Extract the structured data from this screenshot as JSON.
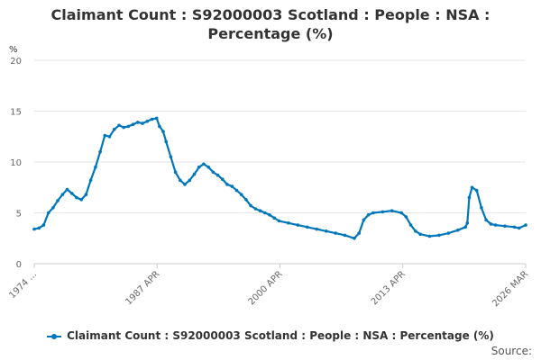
{
  "chart_data": {
    "type": "line",
    "title_line1": "Claimant Count : S92000003 Scotland : People : NSA :",
    "title_line2": "Percentage (%)",
    "ylabel": "%",
    "xlabel": "",
    "ylim": [
      0,
      20
    ],
    "yticks": [
      "0",
      "5",
      "10",
      "15",
      "20"
    ],
    "xlim": [
      1974.0,
      2026.2
    ],
    "xtick_labels": [
      "1974 ...",
      "1987 APR",
      "2000 APR",
      "2013 APR",
      "2026 MAR"
    ],
    "grid": true,
    "legend_position": "bottom",
    "series": [
      {
        "name": "Claimant Count : S92000003 Scotland : People : NSA : Percentage (%)",
        "color": "#0077bb",
        "x": [
          1974.0,
          1974.5,
          1975.0,
          1975.5,
          1976.0,
          1976.5,
          1977.0,
          1977.5,
          1978.0,
          1978.5,
          1979.0,
          1979.5,
          1980.0,
          1980.5,
          1981.0,
          1981.5,
          1982.0,
          1982.5,
          1983.0,
          1983.5,
          1984.0,
          1984.5,
          1985.0,
          1985.5,
          1986.0,
          1986.5,
          1987.0,
          1987.3,
          1987.7,
          1988.0,
          1988.5,
          1989.0,
          1989.5,
          1990.0,
          1990.5,
          1991.0,
          1991.5,
          1992.0,
          1992.5,
          1993.0,
          1993.5,
          1994.0,
          1994.5,
          1995.0,
          1995.5,
          1996.0,
          1996.5,
          1997.0,
          1997.5,
          1998.0,
          1998.5,
          1999.0,
          1999.5,
          2000.0,
          2001.0,
          2002.0,
          2003.0,
          2004.0,
          2005.0,
          2006.0,
          2007.0,
          2008.0,
          2008.5,
          2009.0,
          2009.5,
          2010.0,
          2011.0,
          2012.0,
          2013.0,
          2013.5,
          2014.0,
          2014.5,
          2015.0,
          2016.0,
          2017.0,
          2018.0,
          2019.0,
          2019.8,
          2020.0,
          2020.2,
          2020.5,
          2021.0,
          2021.5,
          2022.0,
          2022.5,
          2023.0,
          2024.0,
          2025.0,
          2025.5,
          2026.2
        ],
        "values": [
          3.4,
          3.5,
          3.8,
          5.0,
          5.5,
          6.2,
          6.8,
          7.3,
          6.9,
          6.5,
          6.3,
          6.8,
          8.2,
          9.5,
          11.0,
          12.6,
          12.5,
          13.2,
          13.6,
          13.4,
          13.5,
          13.7,
          13.9,
          13.8,
          14.0,
          14.2,
          14.3,
          13.5,
          13.0,
          12.0,
          10.5,
          9.0,
          8.2,
          7.8,
          8.2,
          8.8,
          9.5,
          9.8,
          9.5,
          9.0,
          8.7,
          8.3,
          7.8,
          7.6,
          7.2,
          6.8,
          6.3,
          5.7,
          5.4,
          5.2,
          5.0,
          4.8,
          4.5,
          4.2,
          4.0,
          3.8,
          3.6,
          3.4,
          3.2,
          3.0,
          2.8,
          2.5,
          3.0,
          4.3,
          4.8,
          5.0,
          5.1,
          5.2,
          5.0,
          4.6,
          3.8,
          3.2,
          2.9,
          2.7,
          2.8,
          3.0,
          3.3,
          3.6,
          4.0,
          6.5,
          7.5,
          7.2,
          5.5,
          4.3,
          3.9,
          3.8,
          3.7,
          3.6,
          3.5,
          3.8
        ]
      }
    ]
  },
  "legend_label": "Claimant Count : S92000003 Scotland : People : NSA : Percentage (%)",
  "source_label": "Source:"
}
